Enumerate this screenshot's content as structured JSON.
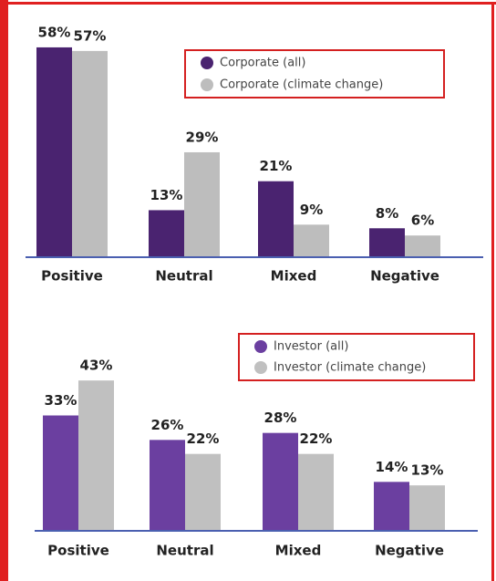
{
  "chart_data": [
    {
      "type": "bar",
      "categories": [
        "Positive",
        "Neutral",
        "Mixed",
        "Negative"
      ],
      "series": [
        {
          "name": "Corporate (all)",
          "color": "#4a2370",
          "values": [
            58,
            13,
            21,
            8
          ],
          "value_labels": [
            "58%",
            "13%",
            "21%",
            "8%"
          ]
        },
        {
          "name": "Corporate (climate change)",
          "color": "#bdbdbd",
          "values": [
            57,
            29,
            9,
            6
          ],
          "value_labels": [
            "57%",
            "29%",
            "9%",
            "6%"
          ]
        }
      ],
      "ylim": [
        0,
        60
      ]
    },
    {
      "type": "bar",
      "categories": [
        "Positive",
        "Neutral",
        "Mixed",
        "Negative"
      ],
      "series": [
        {
          "name": "Investor (all)",
          "color": "#6b3fa0",
          "values": [
            33,
            26,
            28,
            14
          ],
          "value_labels": [
            "33%",
            "26%",
            "28%",
            "14%"
          ]
        },
        {
          "name": "Investor (climate change)",
          "color": "#c0c0c0",
          "values": [
            43,
            22,
            22,
            13
          ],
          "value_labels": [
            "43%",
            "22%",
            "22%",
            "13%"
          ]
        }
      ],
      "ylim": [
        0,
        60
      ]
    }
  ]
}
